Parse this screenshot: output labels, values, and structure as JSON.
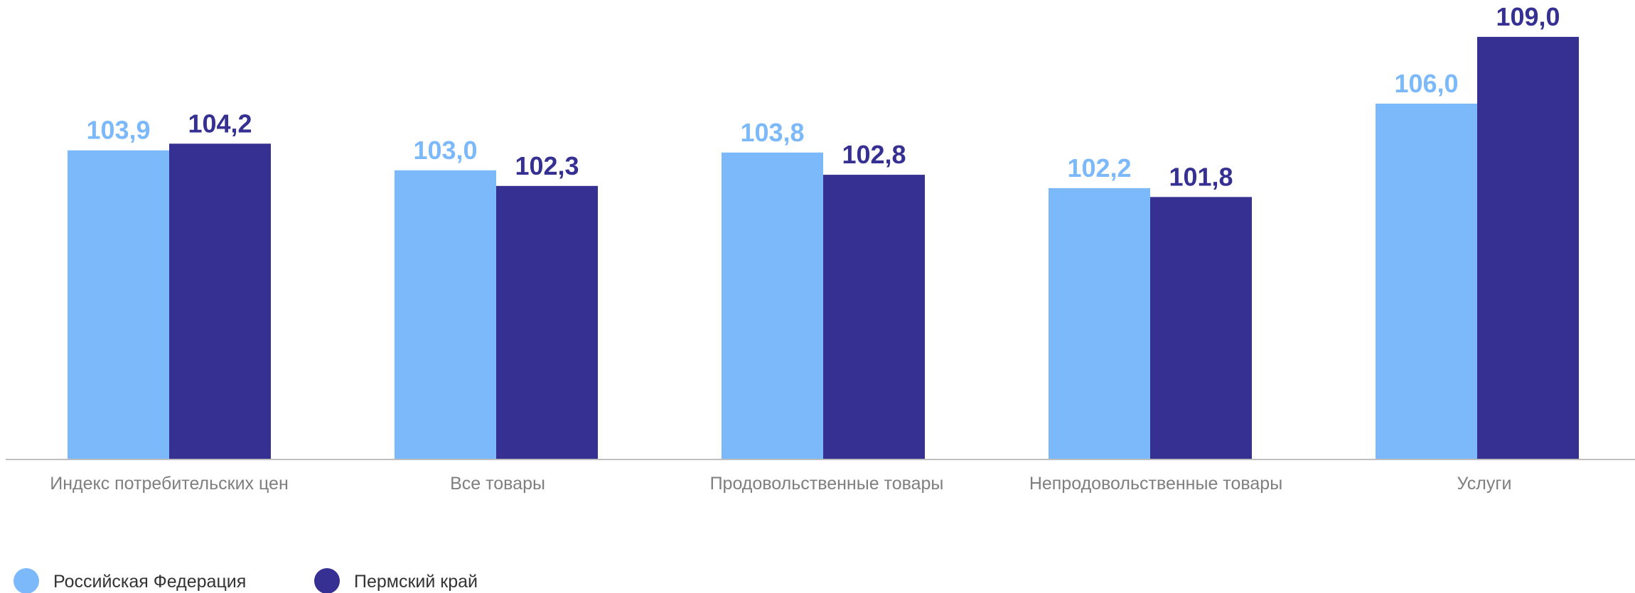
{
  "chart_data": {
    "type": "bar",
    "categories": [
      "Индекс потребительских цен",
      "Все товары",
      "Продовольственные товары",
      "Непродовольственные товары",
      "Услуги"
    ],
    "series": [
      {
        "name": "Российская Федерация",
        "color": "#7cb9fa",
        "values": [
          103.9,
          103.0,
          103.8,
          102.2,
          106.0
        ],
        "labels": [
          "103,9",
          "103,0",
          "103,8",
          "102,2",
          "106,0"
        ]
      },
      {
        "name": "Пермский край",
        "color": "#363092",
        "values": [
          104.2,
          102.3,
          102.8,
          101.8,
          109.0
        ],
        "labels": [
          "104,2",
          "102,3",
          "102,8",
          "101,8",
          "109,0"
        ]
      }
    ],
    "title": "",
    "xlabel": "",
    "ylabel": "",
    "ylim": [
      90.0,
      109.7
    ],
    "grid": false,
    "axis_color": "#bfbfbf",
    "category_label_color": "#7f7f7f",
    "legend_position": "bottom-left"
  }
}
